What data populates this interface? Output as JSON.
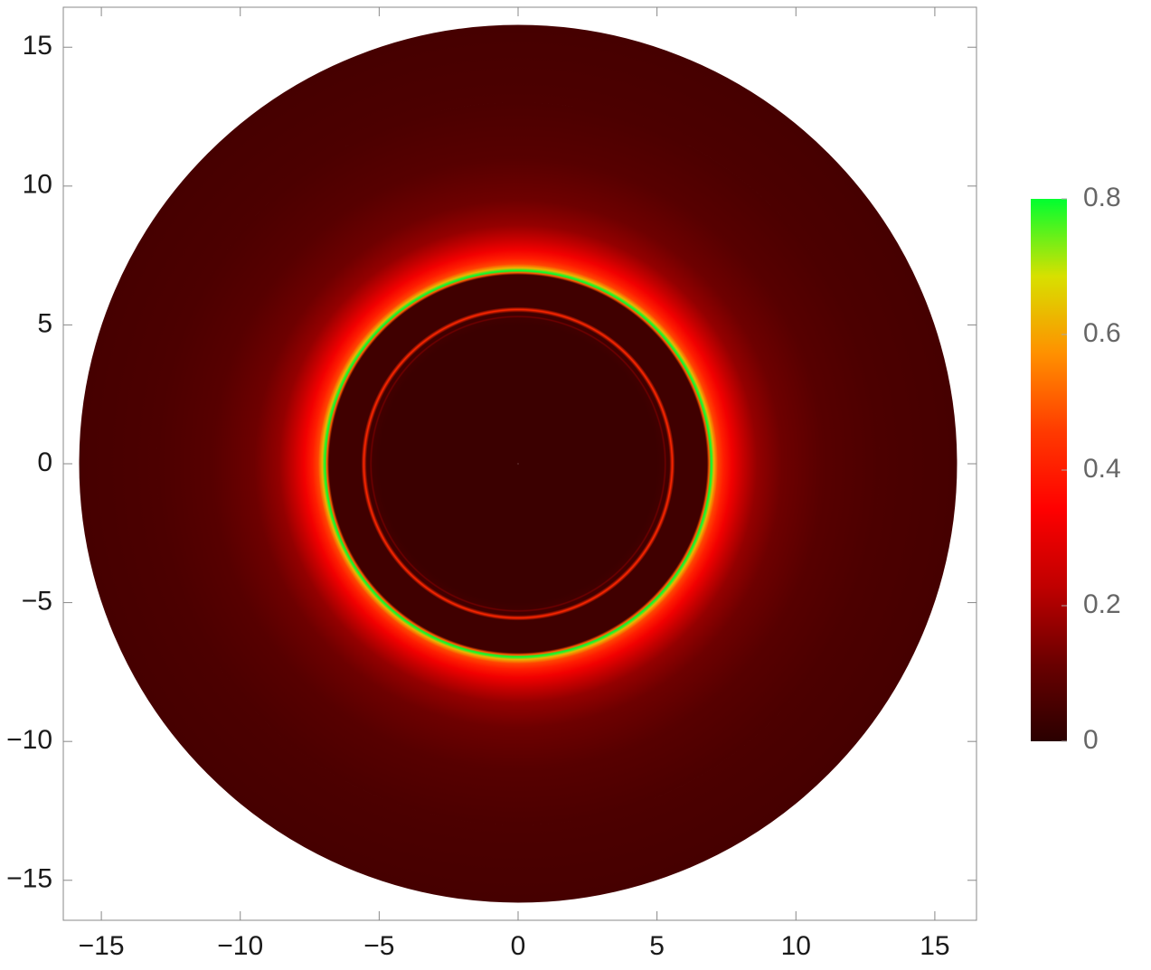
{
  "chart_data": {
    "type": "radial-density",
    "xlim": [
      -16.37,
      16.5
    ],
    "ylim": [
      -16.44,
      16.44
    ],
    "xticks": [
      {
        "value": -15,
        "label": "−15"
      },
      {
        "value": -10,
        "label": "−10"
      },
      {
        "value": -5,
        "label": "−5"
      },
      0,
      5,
      10,
      15
    ],
    "yticks": [
      {
        "value": -15,
        "label": "−15"
      },
      {
        "value": -10,
        "label": "−10"
      },
      {
        "value": -5,
        "label": "−5"
      },
      0,
      5,
      10,
      15
    ],
    "profile": {
      "r": [
        0,
        5.0,
        5.25,
        5.3,
        5.35,
        5.45,
        5.55,
        5.65,
        6.8,
        6.88,
        6.95,
        7.05,
        7.2,
        7.4,
        7.7,
        8.1,
        8.6,
        9.5,
        11,
        13,
        15.8
      ],
      "values": [
        0.03,
        0.03,
        0.04,
        0.12,
        0.04,
        0.04,
        0.42,
        0.04,
        0.04,
        0.5,
        0.8,
        0.62,
        0.47,
        0.4,
        0.32,
        0.24,
        0.17,
        0.12,
        0.08,
        0.06,
        0.05
      ]
    },
    "colorbar": {
      "lim": [
        0,
        0.8
      ],
      "ticks": [
        0,
        0.2,
        0.4,
        0.6,
        0.8
      ],
      "colors": [
        "#2a0000",
        "#6a0000",
        "#c00000",
        "#ff0000",
        "#ff3a00",
        "#ff9000",
        "#d8e000",
        "#00ff30"
      ]
    }
  }
}
